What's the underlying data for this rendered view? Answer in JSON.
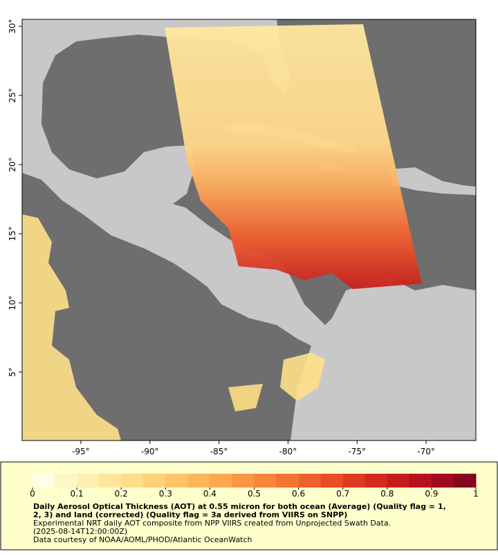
{
  "map": {
    "xlim": [
      -99.25,
      -66.4
    ],
    "ylim": [
      0.05,
      30.5
    ],
    "xticks": [
      {
        "value": -95,
        "label": "-95°"
      },
      {
        "value": -90,
        "label": "-90°"
      },
      {
        "value": -85,
        "label": "-85°"
      },
      {
        "value": -80,
        "label": "-80°"
      },
      {
        "value": -75,
        "label": "-75°"
      },
      {
        "value": -70,
        "label": "-70°"
      }
    ],
    "yticks": [
      {
        "value": 5,
        "label": "5°"
      },
      {
        "value": 10,
        "label": "10°"
      },
      {
        "value": 15,
        "label": "15°"
      },
      {
        "value": 20,
        "label": "20°"
      },
      {
        "value": 25,
        "label": "25°"
      },
      {
        "value": 30,
        "label": "30°"
      }
    ]
  },
  "colorbar": {
    "range": [
      0,
      1
    ],
    "ticks": [
      0,
      0.1,
      0.2,
      0.3,
      0.4,
      0.5,
      0.6,
      0.7,
      0.8,
      0.9,
      1
    ],
    "colors": [
      "#fffde6",
      "#fff6c8",
      "#ffefb0",
      "#ffe69a",
      "#ffdc88",
      "#ffd078",
      "#ffc368",
      "#ffb55a",
      "#ffa64e",
      "#fd9644",
      "#fa853b",
      "#f57333",
      "#ef602c",
      "#e84d26",
      "#df3a21",
      "#d42a1d",
      "#c61d1c",
      "#b4121d",
      "#9f0a1f",
      "#870420"
    ]
  },
  "caption": {
    "title_lines": [
      "Daily Aerosol Optical Thickness (AOT) at 0.55 micron for both ocean (Average) (Quality flag = 1,",
      "2, 3) and land (corrected) (Quality flag = 3a derived from VIIRS on SNPP)"
    ],
    "lines": [
      "Experimental NRT daily AOT composite from NPP VIIRS created from Unprojected Swath Data.",
      "(2025-08-14T12:00:00Z)",
      "Data courtesy of NOAA/AOML/PHOD/Atlantic OceanWatch"
    ]
  }
}
